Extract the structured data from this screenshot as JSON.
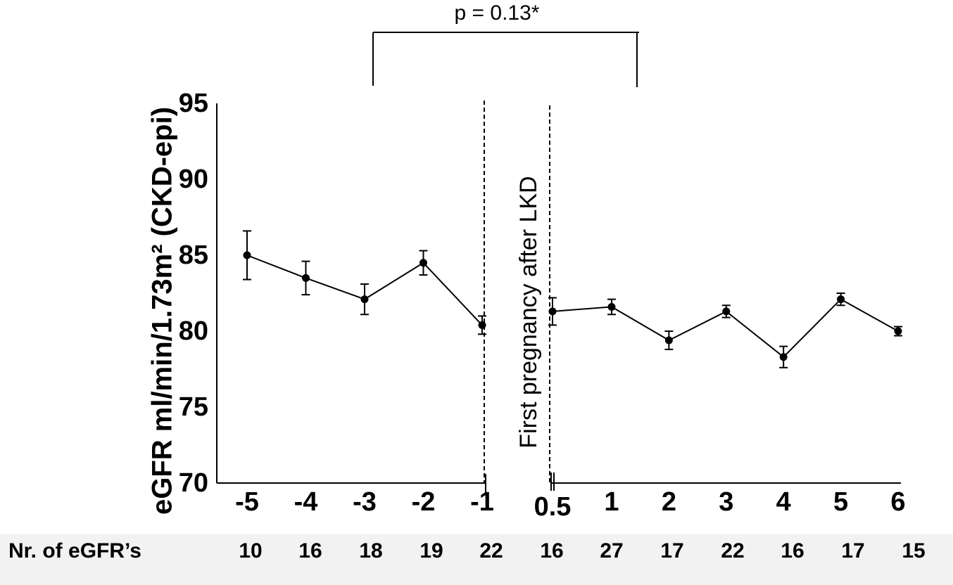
{
  "chart_data": {
    "type": "line",
    "ylabel": "eGFR ml/min/1.73m² (CKD-epi)",
    "ylim": [
      70,
      95
    ],
    "yticks": [
      "70",
      "75",
      "80",
      "85",
      "90",
      "95"
    ],
    "event_label": "First pregnancy after LKD",
    "significance": {
      "label": "p = 0.13*",
      "from": -3,
      "to": 1
    },
    "segments": [
      {
        "name": "before",
        "points": [
          {
            "x": -5,
            "label": "-5",
            "y": 85.0,
            "err": 1.6
          },
          {
            "x": -4,
            "label": "-4",
            "y": 83.5,
            "err": 1.1
          },
          {
            "x": -3,
            "label": "-3",
            "y": 82.1,
            "err": 1.0
          },
          {
            "x": -2,
            "label": "-2",
            "y": 84.5,
            "err": 0.8
          },
          {
            "x": -1,
            "label": "-1",
            "y": 80.4,
            "err": 0.6
          }
        ]
      },
      {
        "name": "after",
        "points": [
          {
            "x": 0.5,
            "label": "0.5",
            "y": 81.3,
            "err": 0.9
          },
          {
            "x": 1,
            "label": "1",
            "y": 81.6,
            "err": 0.5
          },
          {
            "x": 2,
            "label": "2",
            "y": 79.4,
            "err": 0.6
          },
          {
            "x": 3,
            "label": "3",
            "y": 81.3,
            "err": 0.4
          },
          {
            "x": 4,
            "label": "4",
            "y": 78.3,
            "err": 0.7
          },
          {
            "x": 5,
            "label": "5",
            "y": 82.1,
            "err": 0.4
          },
          {
            "x": 6,
            "label": "6",
            "y": 80.0,
            "err": 0.3
          }
        ]
      }
    ]
  },
  "counts": {
    "label": "Nr. of eGFR’s",
    "values": [
      "10",
      "16",
      "18",
      "19",
      "22",
      "16",
      "27",
      "17",
      "22",
      "16",
      "17",
      "15"
    ]
  }
}
